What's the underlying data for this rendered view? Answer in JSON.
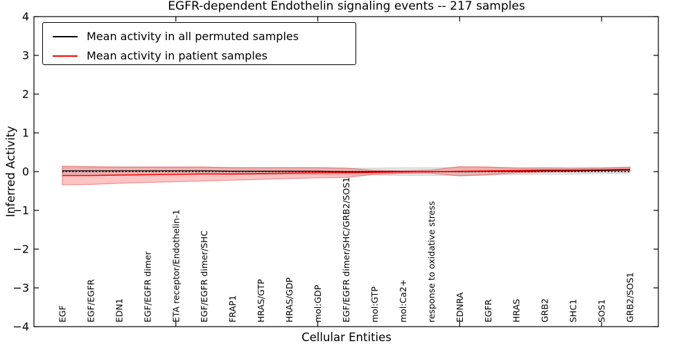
{
  "figure": {
    "title": "EGFR-dependent Endothelin signaling events -- 217 samples",
    "xlabel": "Cellular Entities",
    "ylabel": "Inferred Activity"
  },
  "legend": {
    "entries": [
      {
        "label": "Mean activity in all permuted samples",
        "color": "#000000"
      },
      {
        "label": "Mean activity in patient samples",
        "color": "#ff0000"
      }
    ]
  },
  "chart_data": {
    "type": "line",
    "title": "EGFR-dependent Endothelin signaling events -- 217 samples",
    "xlabel": "Cellular Entities",
    "ylabel": "Inferred Activity",
    "xlim": [
      0,
      22
    ],
    "ylim": [
      -4,
      4
    ],
    "grid": false,
    "legend_position": "upper left",
    "ytick_labels": [
      "4",
      "3",
      "2",
      "1",
      "0",
      "−1",
      "−2",
      "−3",
      "−4"
    ],
    "ytick_values": [
      4,
      3,
      2,
      1,
      0,
      -1,
      -2,
      -3,
      -4
    ],
    "xtick_values": [
      5,
      10,
      15,
      20
    ],
    "categories": [
      "EGF",
      "EGF/EGFR",
      "EDN1",
      "EGF/EGFR dimer",
      "ETA receptor/Endothelin-1",
      "EGF/EGFR dimer/SHC",
      "FRAP1",
      "HRAS/GTP",
      "HRAS/GDP",
      "mol:GDP",
      "EGF/EGFR dimer/SHC/GRB2/SOS1",
      "mol:GTP",
      "mol:Ca2+",
      "response to oxidative stress",
      "EDNRA",
      "EGFR",
      "HRAS",
      "GRB2",
      "SHC1",
      "SOS1",
      "GRB2/SOS1"
    ],
    "x": [
      1,
      2,
      3,
      4,
      5,
      6,
      7,
      8,
      9,
      10,
      11,
      12,
      13,
      14,
      15,
      16,
      17,
      18,
      19,
      20,
      21
    ],
    "series": [
      {
        "name": "Mean activity in all permuted samples",
        "color": "#000000",
        "band_fill": "rgba(0,0,0,0.10)",
        "band_edge": "rgba(0,0,0,0.12)",
        "line_width": 1.3,
        "values": [
          0.02,
          0.02,
          0.02,
          0.02,
          0.02,
          0.02,
          0.01,
          0.01,
          0.01,
          0.01,
          0.0,
          0.0,
          0.0,
          0.0,
          0.0,
          0.01,
          0.01,
          0.02,
          0.02,
          0.03,
          0.04
        ],
        "std": [
          0.09,
          0.09,
          0.09,
          0.09,
          0.09,
          0.09,
          0.09,
          0.09,
          0.09,
          0.09,
          0.09,
          0.09,
          0.1,
          0.1,
          0.1,
          0.1,
          0.09,
          0.09,
          0.09,
          0.08,
          0.08
        ]
      },
      {
        "name": "Mean activity in patient samples",
        "color": "#ff0000",
        "band_fill": "rgba(255,60,60,0.30)",
        "band_edge": "rgba(220,40,40,0.45)",
        "line_width": 1.5,
        "values": [
          -0.1,
          -0.1,
          -0.09,
          -0.08,
          -0.07,
          -0.06,
          -0.06,
          -0.05,
          -0.04,
          -0.03,
          -0.03,
          -0.02,
          -0.01,
          0.0,
          0.01,
          0.02,
          0.03,
          0.04,
          0.04,
          0.05,
          0.06
        ],
        "std": [
          0.24,
          0.23,
          0.21,
          0.2,
          0.19,
          0.18,
          0.16,
          0.15,
          0.14,
          0.13,
          0.12,
          0.05,
          0.03,
          0.04,
          0.12,
          0.1,
          0.06,
          0.05,
          0.04,
          0.04,
          0.05
        ]
      }
    ],
    "zero_line": {
      "y": 0,
      "style": "dotted",
      "color": "#000000"
    }
  }
}
